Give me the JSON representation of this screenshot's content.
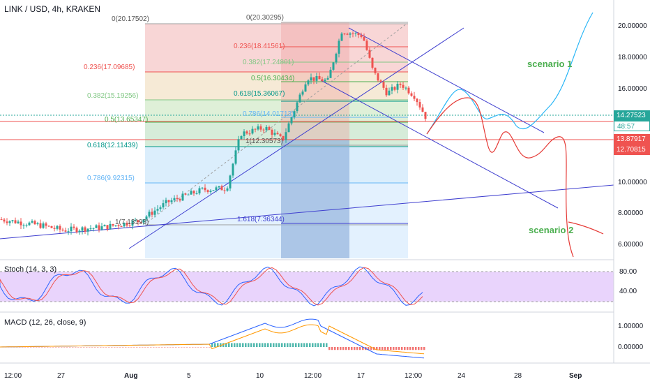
{
  "header": {
    "title": "LINK / USD, 4h, KRAKEN"
  },
  "price_axis": [
    "20.00000",
    "18.00000",
    "16.00000",
    "10.00000",
    "8.00000",
    "6.00000"
  ],
  "stoch_axis": [
    "80.00",
    "40.00"
  ],
  "macd_axis": [
    "1.00000",
    "0.00000"
  ],
  "time_axis": [
    "12:00",
    "27",
    "Aug",
    "5",
    "10",
    "12:00",
    "17",
    "12:00",
    "24",
    "28",
    "Sep"
  ],
  "badges": {
    "last_price": {
      "label": "14.27523",
      "color": "#26a69a"
    },
    "countdown": {
      "label": "48:57",
      "color": "#ffffff"
    },
    "level_a": {
      "label": "13.87917",
      "color": "#ef5350"
    },
    "level_b": {
      "label": "12.70815",
      "color": "#ef5350"
    }
  },
  "fib_left": {
    "labels": [
      "0(20.17502)",
      "0.236(17.09685)",
      "0.382(15.19256)",
      "0.5(13.65347)",
      "0.618(12.11439)",
      "0.786(9.92315)",
      "1(7.13193)"
    ]
  },
  "fib_right": {
    "labels": [
      "0(20.30295)",
      "0.236(18.41561)",
      "0.382(17.24801)",
      "0.5(16.30434)",
      "0.618(15.36067)",
      "0.786(14.01713)",
      "1(12.30573)",
      "1.618(7.36344)"
    ]
  },
  "scenarios": {
    "one": "scenario 1",
    "two": "scenario 2"
  },
  "panes": {
    "stoch": "Stoch (14, 3, 3)",
    "macd": "MACD (12, 26, close, 9)"
  },
  "colors": {
    "up": "#26a69a",
    "down": "#ef5350",
    "trend": "#3f3fcf",
    "stoch_fill": "#e1c6fb"
  },
  "chart_data": {
    "type": "candlestick",
    "x_labels": [
      "12:00",
      "27",
      "Aug",
      "5",
      "10",
      "12:00",
      "17",
      "12:00",
      "24",
      "28",
      "Sep"
    ],
    "y_ticks": [
      20,
      18,
      16,
      10,
      8,
      6
    ],
    "approx_close_path": [
      {
        "x": "27",
        "y": 7.1
      },
      {
        "x": "Aug",
        "y": 7.4
      },
      {
        "x": "5",
        "y": 9.5
      },
      {
        "x": "10",
        "y": 13.5
      },
      {
        "x": "12:00",
        "y": 16.5
      },
      {
        "x": "17",
        "y": 19.8
      },
      {
        "x": "12:00",
        "y": 14.3
      }
    ],
    "last_price": 14.27523
  }
}
